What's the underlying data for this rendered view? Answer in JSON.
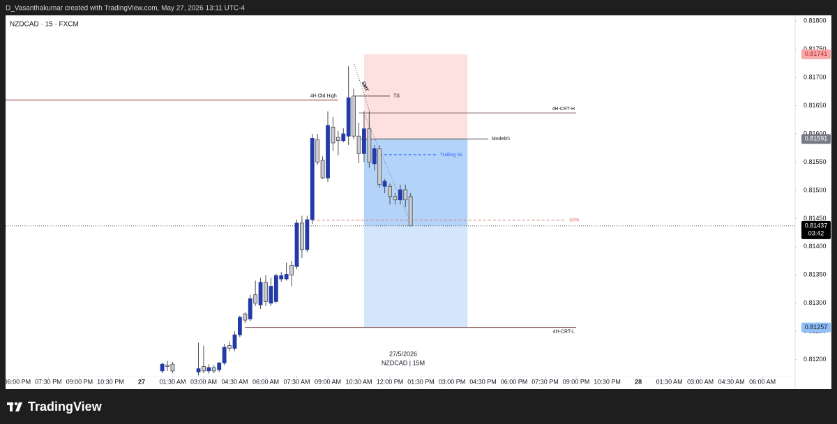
{
  "header": {
    "created": "D_Vasanthakumar created with TradingView.com, May 27, 2026 13:11 UTC-4"
  },
  "footer": {
    "brand": "TradingView"
  },
  "chart_data": {
    "type": "candlestick",
    "title": "NZDCAD · 15 · FXCM",
    "date_label": "27/5/2026",
    "symbol_label": "NZDCAD | 15M",
    "up_color": "#233aa8",
    "down_color": "#c9cbd1",
    "wick_color": "#4a4a4a",
    "x": [
      7.0,
      7.25,
      7.5,
      8.75,
      9.0,
      9.25,
      9.5,
      9.75,
      10.0,
      10.25,
      10.5,
      10.75,
      11.0,
      11.25,
      11.5,
      11.75,
      12.0,
      12.25,
      12.5,
      12.75,
      13.0,
      13.25,
      13.5,
      13.75,
      14.0,
      14.25,
      14.5,
      14.75,
      15.0,
      15.25,
      15.5,
      15.75,
      16.0,
      16.25,
      16.5,
      16.75,
      17.0,
      17.25,
      17.5,
      17.75,
      18.0,
      18.25,
      18.5,
      18.75,
      19.0
    ],
    "open": [
      0.8118,
      0.8119,
      0.81192,
      0.81178,
      0.81188,
      0.8118,
      0.81186,
      0.81182,
      0.81194,
      0.81225,
      0.8122,
      0.81244,
      0.81281,
      0.81272,
      0.81315,
      0.81297,
      0.81337,
      0.813,
      0.81303,
      0.81343,
      0.81343,
      0.81367,
      0.81365,
      0.81442,
      0.81395,
      0.81448,
      0.8159,
      0.81553,
      0.81522,
      0.81612,
      0.81594,
      0.81588,
      0.81596,
      0.81667,
      0.81596,
      0.81565,
      0.81609,
      0.81547,
      0.81574,
      0.81507,
      0.81507,
      0.81489,
      0.81483,
      0.81501,
      0.81489
    ],
    "high": [
      0.81195,
      0.81198,
      0.81196,
      0.8123,
      0.81225,
      0.81192,
      0.8119,
      0.81196,
      0.81228,
      0.81232,
      0.8125,
      0.81278,
      0.81284,
      0.81315,
      0.8134,
      0.81345,
      0.8135,
      0.81345,
      0.81352,
      0.81355,
      0.81372,
      0.81375,
      0.81448,
      0.81455,
      0.81455,
      0.816,
      0.816,
      0.8156,
      0.8164,
      0.8163,
      0.81605,
      0.8161,
      0.8172,
      0.8168,
      0.8162,
      0.8164,
      0.8164,
      0.8158,
      0.8158,
      0.8152,
      0.81512,
      0.81495,
      0.8151,
      0.8151,
      0.81495
    ],
    "low": [
      0.81176,
      0.8118,
      0.81176,
      0.81172,
      0.81176,
      0.81175,
      0.81176,
      0.81178,
      0.8119,
      0.81215,
      0.81215,
      0.8124,
      0.81265,
      0.81268,
      0.81295,
      0.8129,
      0.81295,
      0.81295,
      0.813,
      0.81338,
      0.8134,
      0.8133,
      0.8136,
      0.8138,
      0.8139,
      0.8144,
      0.81545,
      0.8152,
      0.81515,
      0.8157,
      0.81562,
      0.81585,
      0.8158,
      0.8159,
      0.81548,
      0.8155,
      0.8154,
      0.81535,
      0.81505,
      0.81495,
      0.81475,
      0.81475,
      0.81475,
      0.8147,
      0.81437
    ],
    "close": [
      0.81192,
      0.81188,
      0.8118,
      0.81184,
      0.8118,
      0.81186,
      0.8118,
      0.81194,
      0.81222,
      0.8122,
      0.81244,
      0.81275,
      0.8127,
      0.81308,
      0.813,
      0.81337,
      0.81303,
      0.8133,
      0.81349,
      0.81349,
      0.81351,
      0.8135,
      0.81442,
      0.81395,
      0.81448,
      0.81592,
      0.8155,
      0.81522,
      0.81615,
      0.81584,
      0.81588,
      0.816,
      0.81664,
      0.81596,
      0.81565,
      0.81609,
      0.8155,
      0.81574,
      0.8151,
      0.81516,
      0.81489,
      0.81483,
      0.81501,
      0.81483,
      0.81437
    ],
    "xlim": [
      -0.57,
      37.58
    ],
    "xticks": [
      {
        "value": 0,
        "label": "06:00 PM"
      },
      {
        "value": 1.5,
        "label": "07:30 PM"
      },
      {
        "value": 3,
        "label": "09:00 PM"
      },
      {
        "value": 4.5,
        "label": "10:30 PM"
      },
      {
        "value": 6,
        "label": "27"
      },
      {
        "value": 7.5,
        "label": "01:30 AM"
      },
      {
        "value": 9,
        "label": "03:00 AM"
      },
      {
        "value": 10.5,
        "label": "04:30 AM"
      },
      {
        "value": 12,
        "label": "06:00 AM"
      },
      {
        "value": 13.5,
        "label": "07:30 AM"
      },
      {
        "value": 15,
        "label": "09:00 AM"
      },
      {
        "value": 16.5,
        "label": "10:30 AM"
      },
      {
        "value": 18,
        "label": "12:00 PM"
      },
      {
        "value": 19.5,
        "label": "01:30 PM"
      },
      {
        "value": 21,
        "label": "03:00 PM"
      },
      {
        "value": 22.5,
        "label": "04:30 PM"
      },
      {
        "value": 24,
        "label": "06:00 PM"
      },
      {
        "value": 25.5,
        "label": "07:30 PM"
      },
      {
        "value": 27,
        "label": "09:00 PM"
      },
      {
        "value": 28.5,
        "label": "10:30 PM"
      },
      {
        "value": 30,
        "label": "28"
      },
      {
        "value": 31.5,
        "label": "01:30 AM"
      },
      {
        "value": 33,
        "label": "03:00 AM"
      },
      {
        "value": 34.5,
        "label": "04:30 AM"
      },
      {
        "value": 36,
        "label": "06:00 AM"
      }
    ],
    "ylim": [
      0.8117,
      0.8181
    ],
    "yticks": [
      {
        "value": 0.818,
        "label": "0.81800"
      },
      {
        "value": 0.8175,
        "label": "0.81750"
      },
      {
        "value": 0.817,
        "label": "0.81700"
      },
      {
        "value": 0.8165,
        "label": "0.81650"
      },
      {
        "value": 0.816,
        "label": "0.81600"
      },
      {
        "value": 0.8155,
        "label": "0.81550"
      },
      {
        "value": 0.815,
        "label": "0.81500"
      },
      {
        "value": 0.8145,
        "label": "0.81450"
      },
      {
        "value": 0.814,
        "label": "0.81400"
      },
      {
        "value": 0.8135,
        "label": "0.81350"
      },
      {
        "value": 0.813,
        "label": "0.81300"
      },
      {
        "value": 0.8125,
        "label": "0.81250"
      },
      {
        "value": 0.812,
        "label": "0.81200"
      }
    ],
    "grid": false,
    "position": {
      "x": [
        16.75,
        21.75
      ],
      "stop": 0.81741,
      "entry": 0.81591,
      "target": 0.81257,
      "stop_color": "#fde0e0",
      "target_color": "#d3e6fc",
      "filled_color": "#b3d3f9"
    },
    "levels": [
      {
        "label": "4H Old High",
        "value": 0.8166,
        "x": [
          -0.57,
          15.5
        ],
        "color": "#8b2b2b",
        "style": "solid",
        "label_pos": "above"
      },
      {
        "label": "TS",
        "value": 0.81667,
        "x": [
          16.25,
          18.0
        ],
        "color": "#333333",
        "style": "solid",
        "label_pos": "right"
      },
      {
        "label": "4H-CRT-H",
        "value": 0.81637,
        "x": [
          16.5,
          27.0
        ],
        "color": "#8a6d6d",
        "style": "solid",
        "label_pos": "above"
      },
      {
        "label": "Model#1",
        "value": 0.81591,
        "x": [
          16.5,
          22.75
        ],
        "color": "#555555",
        "style": "solid",
        "label_pos": "right"
      },
      {
        "label": "Trailing SL",
        "value": 0.81563,
        "x": [
          17.25,
          20.25
        ],
        "color": "#2962ff",
        "style": "dashed",
        "label_pos": "right"
      },
      {
        "label": "50%",
        "value": 0.81447,
        "x": [
          14.25,
          26.5
        ],
        "color": "#e57373",
        "style": "dashed",
        "label_pos": "right"
      },
      {
        "label": "4H-CRT-L",
        "value": 0.81257,
        "x": [
          11.0,
          27.0
        ],
        "color": "#8a5a5a",
        "style": "solid",
        "label_pos": "below"
      }
    ],
    "smt_label": "SMT",
    "price_tags": [
      {
        "value": 0.81741,
        "label": "0.81741",
        "color": "#f7a8a8",
        "text_color": "#b22833"
      },
      {
        "value": 0.81591,
        "label": "0.81591",
        "color": "#787b86",
        "text_color": "#ffffff"
      },
      {
        "value": 0.81437,
        "label": "0.81437",
        "sublabel": "03:42",
        "color": "#000000",
        "text_color": "#ffffff"
      },
      {
        "value": 0.81257,
        "label": "0.81257",
        "color": "#90bff9",
        "text_color": "#131722"
      }
    ]
  }
}
